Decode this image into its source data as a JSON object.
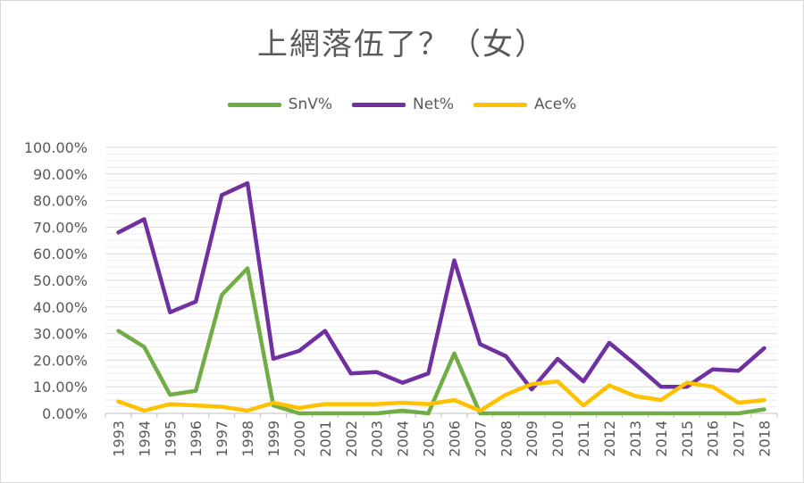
{
  "chart_data": {
    "type": "line",
    "title": "上網落伍了？（女）",
    "xlabel": "",
    "ylabel": "",
    "ylim": [
      0,
      1
    ],
    "grid": true,
    "legend_position": "top",
    "x": [
      "1993",
      "1994",
      "1995",
      "1996",
      "1997",
      "1998",
      "1999",
      "2000",
      "2001",
      "2002",
      "2003",
      "2004",
      "2005",
      "2006",
      "2007",
      "2008",
      "2009",
      "2010",
      "2011",
      "2012",
      "2013",
      "2014",
      "2015",
      "2016",
      "2017",
      "2018"
    ],
    "y_ticks": [
      "0.00%",
      "10.00%",
      "20.00%",
      "30.00%",
      "40.00%",
      "50.00%",
      "60.00%",
      "70.00%",
      "80.00%",
      "90.00%",
      "100.00%"
    ],
    "series": [
      {
        "name": "SnV%",
        "color": "#70ad47",
        "values": [
          0.31,
          0.25,
          0.07,
          0.085,
          0.445,
          0.545,
          0.03,
          0.0,
          0.0,
          0.0,
          0.0,
          0.01,
          0.0,
          0.225,
          0.0,
          0.0,
          0.0,
          0.0,
          0.0,
          0.0,
          0.0,
          0.0,
          0.0,
          0.0,
          0.0,
          0.015
        ]
      },
      {
        "name": "Net%",
        "color": "#7030a0",
        "values": [
          0.68,
          0.73,
          0.38,
          0.42,
          0.82,
          0.865,
          0.205,
          0.235,
          0.31,
          0.15,
          0.155,
          0.115,
          0.15,
          0.575,
          0.26,
          0.215,
          0.09,
          0.205,
          0.12,
          0.265,
          0.185,
          0.1,
          0.1,
          0.165,
          0.16,
          0.245
        ]
      },
      {
        "name": "Ace%",
        "color": "#ffc000",
        "values": [
          0.045,
          0.01,
          0.035,
          0.03,
          0.025,
          0.01,
          0.04,
          0.02,
          0.035,
          0.035,
          0.035,
          0.04,
          0.035,
          0.05,
          0.01,
          0.07,
          0.11,
          0.12,
          0.03,
          0.105,
          0.065,
          0.05,
          0.115,
          0.1,
          0.04,
          0.05
        ]
      }
    ]
  }
}
